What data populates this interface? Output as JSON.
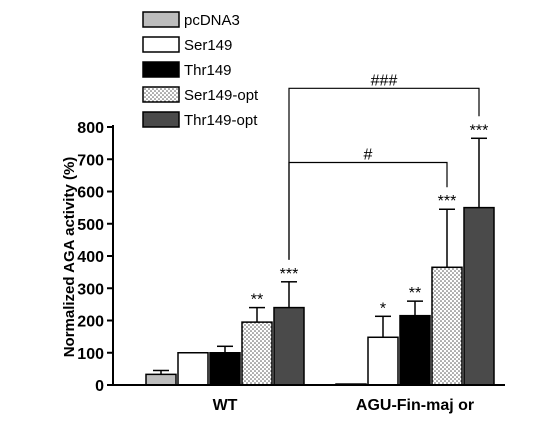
{
  "chart_data": {
    "type": "bar",
    "ylabel": "Normalized AGA activity (%)",
    "ylim": [
      0,
      800
    ],
    "yticks": [
      0,
      100,
      200,
      300,
      400,
      500,
      600,
      700,
      800
    ],
    "categories": [
      "WT",
      "AGU-Fin-maj or"
    ],
    "legend_position": "top-left",
    "series": [
      {
        "name": "pcDNA3",
        "values": [
          33,
          3
        ],
        "errors": [
          12,
          0
        ],
        "color": "#bdbdbd",
        "pattern": "solid",
        "sig": [
          "",
          ""
        ]
      },
      {
        "name": "Ser149",
        "values": [
          100,
          148
        ],
        "errors": [
          0,
          65
        ],
        "color": "#ffffff",
        "pattern": "solid",
        "sig": [
          "",
          "*"
        ]
      },
      {
        "name": "Thr149",
        "values": [
          100,
          215
        ],
        "errors": [
          20,
          45
        ],
        "color": "#000000",
        "pattern": "solid",
        "sig": [
          "",
          "**"
        ]
      },
      {
        "name": "Ser149-opt",
        "values": [
          195,
          365
        ],
        "errors": [
          45,
          180
        ],
        "color": "#ffffff",
        "pattern": "dots",
        "sig": [
          "**",
          "***"
        ]
      },
      {
        "name": "Thr149-opt",
        "values": [
          240,
          550
        ],
        "errors": [
          80,
          215
        ],
        "color": "#4a4a4a",
        "pattern": "solid",
        "sig": [
          "***",
          "***"
        ]
      }
    ],
    "brackets": [
      {
        "label": "#",
        "from": {
          "group": 0,
          "series": 4
        },
        "to": {
          "group": 1,
          "series": 3
        },
        "level": 690
      },
      {
        "label": "###",
        "from": {
          "group": 0,
          "series": 4
        },
        "to": {
          "group": 1,
          "series": 4
        },
        "level": 920
      }
    ]
  }
}
